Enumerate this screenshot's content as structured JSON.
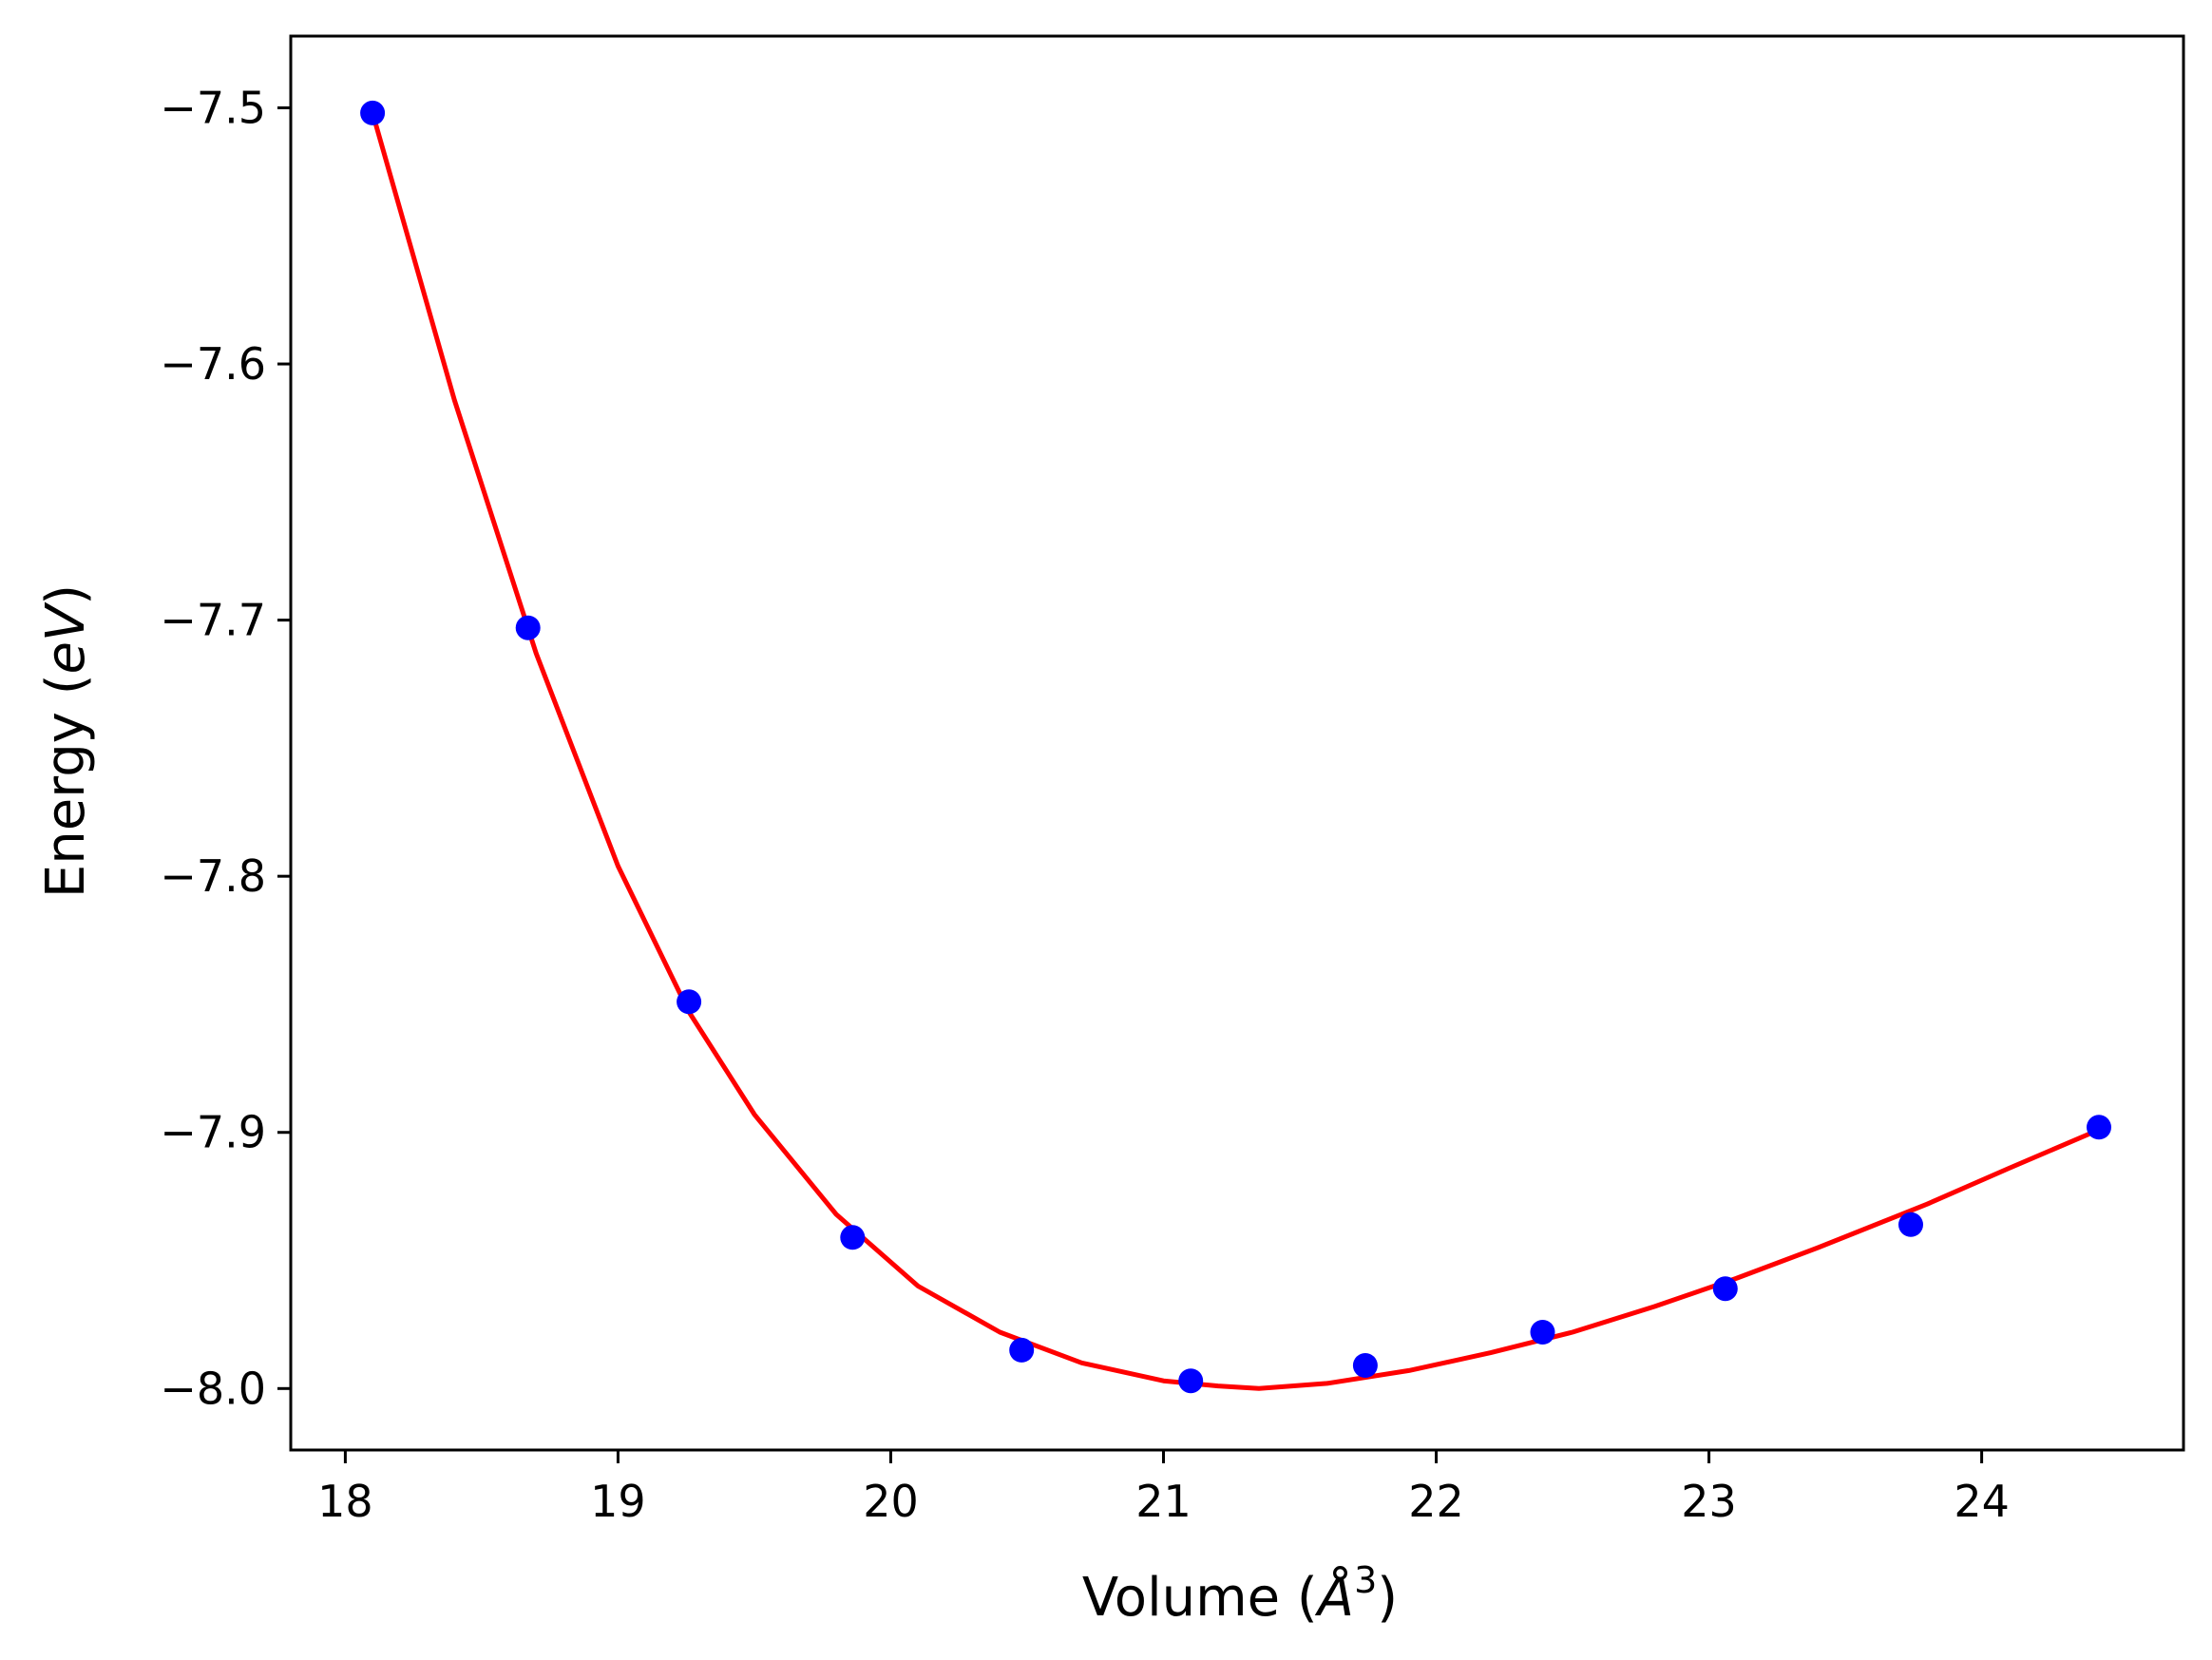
{
  "chart_data": {
    "type": "scatter",
    "xlabel": {
      "prefix": "Volume (",
      "unit": "Å",
      "exponent": "3",
      "suffix": ")"
    },
    "ylabel": {
      "prefix": "Energy (",
      "unit": "eV",
      "suffix": ")"
    },
    "xlim": [
      17.8,
      24.74
    ],
    "ylim": [
      -8.024,
      -7.472
    ],
    "xticks": [
      18,
      19,
      20,
      21,
      22,
      23,
      24
    ],
    "xtick_labels": [
      "18",
      "19",
      "20",
      "21",
      "22",
      "23",
      "24"
    ],
    "yticks": [
      -8.0,
      -7.9,
      -7.8,
      -7.7,
      -7.6,
      -7.5
    ],
    "ytick_labels": [
      "−8.0",
      "−7.9",
      "−7.8",
      "−7.7",
      "−7.6",
      "−7.5"
    ],
    "grid": false,
    "legend": "none",
    "series": [
      {
        "kind": "points",
        "color": "#0000ff",
        "x": [
          18.1,
          18.67,
          19.26,
          19.86,
          20.48,
          21.1,
          21.74,
          22.39,
          23.06,
          23.74,
          24.43
        ],
        "y": [
          -7.502,
          -7.703,
          -7.849,
          -7.941,
          -7.985,
          -7.997,
          -7.991,
          -7.978,
          -7.961,
          -7.936,
          -7.898
        ]
      },
      {
        "kind": "line",
        "color": "#ff0000",
        "x": [
          18.1,
          18.4,
          18.7,
          19.0,
          19.26,
          19.5,
          19.8,
          20.1,
          20.4,
          20.7,
          21.0,
          21.2,
          21.35,
          21.6,
          21.9,
          22.2,
          22.5,
          22.8,
          23.1,
          23.4,
          23.8,
          24.1,
          24.43
        ],
        "y": [
          -7.502,
          -7.614,
          -7.713,
          -7.796,
          -7.853,
          -7.893,
          -7.932,
          -7.96,
          -7.978,
          -7.99,
          -7.997,
          -7.999,
          -8.0,
          -7.998,
          -7.993,
          -7.986,
          -7.978,
          -7.968,
          -7.957,
          -7.945,
          -7.928,
          -7.914,
          -7.899
        ]
      }
    ]
  }
}
